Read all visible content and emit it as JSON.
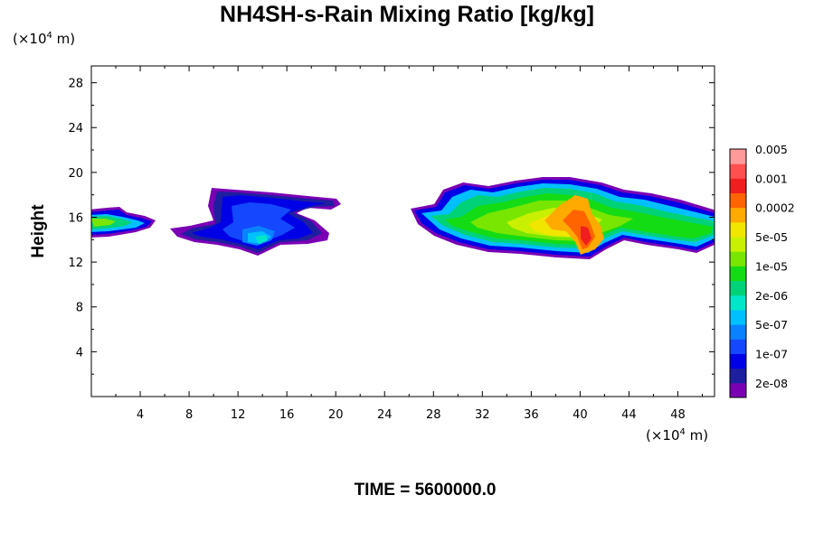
{
  "chart_data": {
    "type": "heatmap",
    "title": "NH4SH-s-Rain Mixing Ratio [kg/kg]",
    "ylabel": "Height",
    "x_unit": "(×10",
    "x_unit_exp": "4",
    "x_unit_tail": " m)",
    "y_unit": "(×10",
    "y_unit_exp": "4",
    "y_unit_tail": " m)",
    "footer": "TIME = 5600000.0",
    "xlim": [
      0,
      51
    ],
    "ylim": [
      0,
      29.5
    ],
    "x_ticks": [
      4,
      8,
      12,
      16,
      20,
      24,
      28,
      32,
      36,
      40,
      44,
      48
    ],
    "y_ticks": [
      4,
      8,
      12,
      16,
      20,
      24,
      28
    ],
    "colorbar": {
      "colors": [
        "#7a00b4",
        "#1e1ea0",
        "#0000e6",
        "#1448ff",
        "#0a82ff",
        "#00c0ff",
        "#00e6c8",
        "#00d278",
        "#14dc14",
        "#78e600",
        "#c8f000",
        "#f0e600",
        "#ffaa00",
        "#ff6400",
        "#f01e1e",
        "#ff5050",
        "#ff9a9a"
      ],
      "labels": [
        "2e-08",
        "1e-07",
        "5e-07",
        "2e-06",
        "1e-05",
        "5e-05",
        "0.0002",
        "0.001",
        "0.005"
      ]
    },
    "regions": [
      {
        "name": "left-edge",
        "x": [
          0,
          5.2
        ],
        "y": [
          14.8,
          17.2
        ],
        "peak": "1e-05"
      },
      {
        "name": "middle",
        "x": [
          6.5,
          20.3
        ],
        "y": [
          13,
          18.7
        ],
        "peak": "2e-06"
      },
      {
        "name": "right",
        "x": [
          26.5,
          51
        ],
        "y": [
          12.6,
          19.6
        ],
        "peak": "0.001"
      }
    ]
  }
}
